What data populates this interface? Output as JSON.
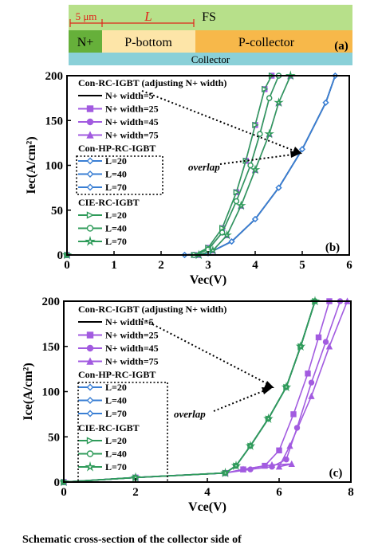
{
  "structure": {
    "fs_label": "FS",
    "dim_5um": "5 μm",
    "dim_L": "L",
    "nplus": "N+",
    "pbottom": "P-bottom",
    "pcollector": "P-collector",
    "collector": "Collector",
    "panel": "(a)",
    "colors": {
      "fs": "#b7e08a",
      "nplus": "#66b03a",
      "pbottom": "#fde5a8",
      "pcollector": "#f7b84a",
      "collector": "#8ad0d8",
      "dim": "#e0251b"
    }
  },
  "legend": {
    "group1": "Con-RC-IGBT (adjusting N+ width)",
    "group2": "Con-HP-RC-IGBT",
    "group3": "CIE-RC-IGBT",
    "overlap": "overlap"
  },
  "caption_fragment": "Schematic cross-section of the collector side of",
  "chart_data": [
    {
      "type": "line",
      "panel": "(b)",
      "xlabel": "Vec(V)",
      "ylabel": "Iec(A/cm²)",
      "xlim": [
        0,
        6
      ],
      "ylim": [
        0,
        200
      ],
      "xticks": [
        0,
        1,
        2,
        3,
        4,
        5,
        6
      ],
      "yticks": [
        0,
        50,
        100,
        150,
        200
      ],
      "series": [
        {
          "name": "N+ width=5",
          "color": "#000000",
          "marker": "none",
          "x": [
            0,
            2.5,
            3.0,
            3.5,
            4.0,
            4.5,
            5.0,
            5.5,
            5.7
          ],
          "y": [
            0,
            0,
            2,
            15,
            40,
            75,
            118,
            170,
            200
          ]
        },
        {
          "name": "N+ width=25",
          "color": "#a25be0",
          "marker": "square",
          "x": [
            0,
            2.7,
            3.0,
            3.3,
            3.6,
            3.8,
            4.0,
            4.2,
            4.35
          ],
          "y": [
            0,
            0,
            8,
            30,
            70,
            105,
            145,
            185,
            200
          ]
        },
        {
          "name": "N+ width=45",
          "color": "#a25be0",
          "marker": "circle",
          "x": [
            0,
            2.7,
            3.0,
            3.3,
            3.6,
            3.9,
            4.1,
            4.3,
            4.5
          ],
          "y": [
            0,
            0,
            6,
            25,
            60,
            100,
            135,
            175,
            200
          ]
        },
        {
          "name": "N+ width=75",
          "color": "#a25be0",
          "marker": "triangle",
          "x": [
            0,
            2.8,
            3.1,
            3.4,
            3.7,
            4.0,
            4.3,
            4.5,
            4.75
          ],
          "y": [
            0,
            0,
            5,
            22,
            55,
            95,
            135,
            170,
            200
          ]
        },
        {
          "name": "L=20",
          "color": "#3a7fd4",
          "marker": "diamond",
          "x": [
            0,
            2.5,
            3.0,
            3.5,
            4.0,
            4.5,
            5.0,
            5.5,
            5.7
          ],
          "y": [
            0,
            0,
            2,
            15,
            40,
            75,
            118,
            170,
            200
          ]
        },
        {
          "name": "L=40",
          "color": "#3a7fd4",
          "marker": "diamond",
          "x": [
            0,
            2.5,
            3.0,
            3.5,
            4.0,
            4.5,
            5.0,
            5.5,
            5.7
          ],
          "y": [
            0,
            0,
            2,
            15,
            40,
            75,
            118,
            170,
            200
          ]
        },
        {
          "name": "L=70",
          "color": "#3a7fd4",
          "marker": "diamond",
          "x": [
            0,
            2.5,
            3.0,
            3.5,
            4.0,
            4.5,
            5.0,
            5.5,
            5.7
          ],
          "y": [
            0,
            0,
            2,
            15,
            40,
            75,
            118,
            170,
            200
          ]
        },
        {
          "name": "L=20",
          "color": "#2f9b5a",
          "marker": "triangle-right",
          "x": [
            0,
            2.7,
            3.0,
            3.3,
            3.6,
            3.8,
            4.0,
            4.2,
            4.35
          ],
          "y": [
            0,
            0,
            8,
            30,
            70,
            105,
            145,
            185,
            200
          ]
        },
        {
          "name": "L=40",
          "color": "#2f9b5a",
          "marker": "circle",
          "x": [
            0,
            2.7,
            3.0,
            3.3,
            3.6,
            3.9,
            4.1,
            4.3,
            4.5
          ],
          "y": [
            0,
            0,
            6,
            25,
            60,
            100,
            135,
            175,
            200
          ]
        },
        {
          "name": "L=70",
          "color": "#2f9b5a",
          "marker": "star",
          "x": [
            0,
            2.8,
            3.1,
            3.4,
            3.7,
            4.0,
            4.3,
            4.5,
            4.75
          ],
          "y": [
            0,
            0,
            5,
            22,
            55,
            95,
            135,
            170,
            200
          ]
        }
      ]
    },
    {
      "type": "line",
      "panel": "(c)",
      "xlabel": "Vce(V)",
      "ylabel": "Ice(A/cm²)",
      "xlim": [
        0,
        8
      ],
      "ylim": [
        0,
        200
      ],
      "xticks": [
        0,
        2,
        4,
        6,
        8
      ],
      "yticks": [
        0,
        50,
        100,
        150,
        200
      ],
      "series": [
        {
          "name": "N+ width=5",
          "color": "#000000",
          "marker": "none",
          "x": [
            0,
            2,
            4.5,
            4.8,
            5.2,
            5.7,
            6.2,
            6.6,
            7.0
          ],
          "y": [
            0,
            5,
            10,
            18,
            40,
            70,
            105,
            150,
            200
          ]
        },
        {
          "name": "N+ width=25",
          "color": "#a25be0",
          "marker": "square",
          "x": [
            0,
            2,
            4.5,
            5.0,
            5.6,
            6.0,
            6.4,
            6.8,
            7.1,
            7.4
          ],
          "y": [
            0,
            5,
            10,
            14,
            18,
            35,
            75,
            120,
            160,
            200
          ]
        },
        {
          "name": "N+ width=45",
          "color": "#a25be0",
          "marker": "circle",
          "x": [
            0,
            2,
            4.5,
            5.2,
            5.8,
            6.2,
            6.5,
            6.9,
            7.3,
            7.7
          ],
          "y": [
            0,
            5,
            10,
            14,
            17,
            25,
            60,
            110,
            155,
            200
          ]
        },
        {
          "name": "N+ width=75",
          "color": "#a25be0",
          "marker": "triangle",
          "x": [
            0,
            2,
            4.5,
            5.0,
            5.8,
            6.35,
            6.0,
            6.3,
            6.9,
            7.4,
            7.9
          ],
          "y": [
            0,
            5,
            10,
            14,
            19,
            20,
            17,
            40,
            95,
            150,
            200
          ]
        },
        {
          "name": "L=20",
          "color": "#3a7fd4",
          "marker": "diamond",
          "x": [
            0,
            2,
            4.5,
            4.8,
            5.2,
            5.7,
            6.2,
            6.6,
            7.0
          ],
          "y": [
            0,
            5,
            10,
            18,
            40,
            70,
            105,
            150,
            200
          ]
        },
        {
          "name": "L=40",
          "color": "#3a7fd4",
          "marker": "diamond",
          "x": [
            0,
            2,
            4.5,
            4.8,
            5.2,
            5.7,
            6.2,
            6.6,
            7.0
          ],
          "y": [
            0,
            5,
            10,
            18,
            40,
            70,
            105,
            150,
            200
          ]
        },
        {
          "name": "L=70",
          "color": "#3a7fd4",
          "marker": "diamond",
          "x": [
            0,
            2,
            4.5,
            4.8,
            5.2,
            5.7,
            6.2,
            6.6,
            7.0
          ],
          "y": [
            0,
            5,
            10,
            18,
            40,
            70,
            105,
            150,
            200
          ]
        },
        {
          "name": "L=20",
          "color": "#2f9b5a",
          "marker": "triangle-right",
          "x": [
            0,
            2,
            4.5,
            4.8,
            5.2,
            5.7,
            6.2,
            6.6,
            7.0
          ],
          "y": [
            0,
            5,
            10,
            18,
            40,
            70,
            105,
            150,
            200
          ]
        },
        {
          "name": "L=40",
          "color": "#2f9b5a",
          "marker": "circle",
          "x": [
            0,
            2,
            4.5,
            4.8,
            5.2,
            5.7,
            6.2,
            6.6,
            7.0
          ],
          "y": [
            0,
            5,
            10,
            18,
            40,
            70,
            105,
            150,
            200
          ]
        },
        {
          "name": "L=70",
          "color": "#2f9b5a",
          "marker": "star",
          "x": [
            0,
            2,
            4.5,
            4.8,
            5.2,
            5.7,
            6.2,
            6.6,
            7.0
          ],
          "y": [
            0,
            5,
            10,
            18,
            40,
            70,
            105,
            150,
            200
          ]
        }
      ]
    }
  ]
}
